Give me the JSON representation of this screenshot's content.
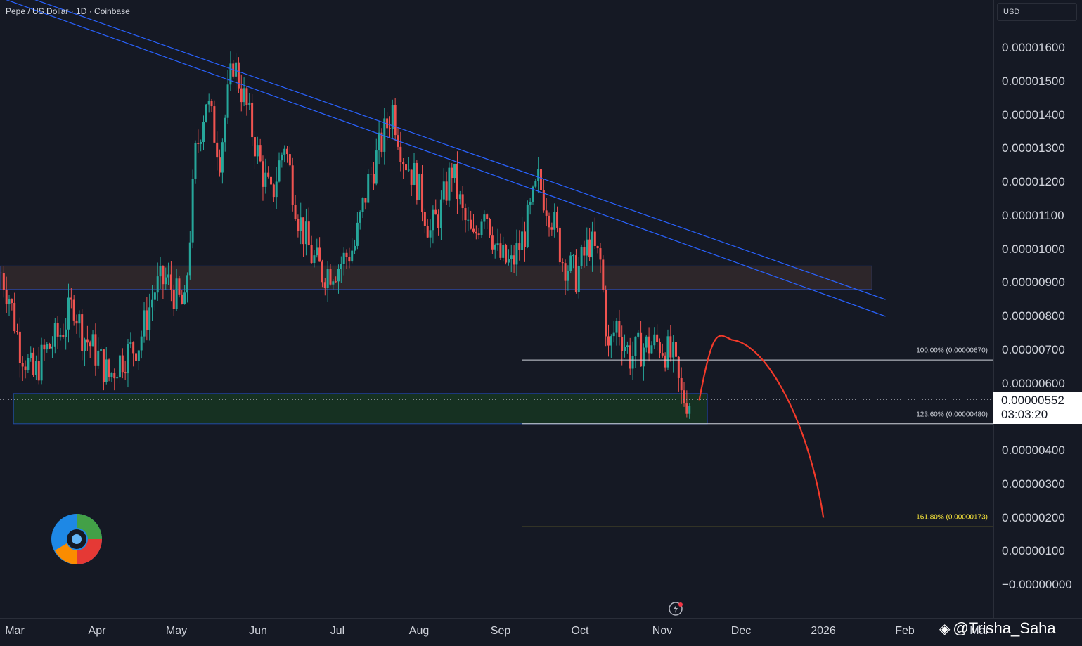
{
  "header": {
    "title": "Pepe / US Dollar · 1D · Coinbase"
  },
  "price_axis": {
    "currency": "USD",
    "labels": [
      {
        "text": "0.00001600",
        "value": 1.6e-05
      },
      {
        "text": "0.00001500",
        "value": 1.5e-05
      },
      {
        "text": "0.00001400",
        "value": 1.4e-05
      },
      {
        "text": "0.00001300",
        "value": 1.3e-05
      },
      {
        "text": "0.00001200",
        "value": 1.2e-05
      },
      {
        "text": "0.00001100",
        "value": 1.1e-05
      },
      {
        "text": "0.00001000",
        "value": 1e-05
      },
      {
        "text": "0.00000900",
        "value": 9e-06
      },
      {
        "text": "0.00000800",
        "value": 8e-06
      },
      {
        "text": "0.00000700",
        "value": 7e-06
      },
      {
        "text": "0.00000600",
        "value": 6e-06
      },
      {
        "text": "0.00000400",
        "value": 4e-06
      },
      {
        "text": "0.00000300",
        "value": 3e-06
      },
      {
        "text": "0.00000200",
        "value": 2e-06
      },
      {
        "text": "0.00000100",
        "value": 1e-06
      },
      {
        "text": "−0.00000000",
        "value": 0
      }
    ],
    "current_price": "0.00000552",
    "countdown": "03:03:20"
  },
  "time_axis": {
    "labels": [
      "Mar",
      "Apr",
      "May",
      "Jun",
      "Jul",
      "Aug",
      "Sep",
      "Oct",
      "Nov",
      "Dec",
      "2026",
      "Feb",
      "Mar"
    ]
  },
  "colors": {
    "background": "#151924",
    "up": "#26a69a",
    "down": "#ef5350",
    "trendline": "#2962ff",
    "projection": "#f23a2a",
    "fib_white": "#d1d4dc",
    "fib_yellow": "#ffeb3b"
  },
  "fib_levels": [
    {
      "label": "100.00% (0.00000670)",
      "value": 6.7e-06,
      "color": "#d1d4dc"
    },
    {
      "label": "123.60% (0.00000480)",
      "value": 4.8e-06,
      "color": "#d1d4dc"
    },
    {
      "label": "161.80% (0.00000173)",
      "value": 1.73e-06,
      "color": "#ffeb3b"
    }
  ],
  "zones": [
    {
      "name": "resistance-zone",
      "from": "2025-02-26",
      "to": "2026-01-15",
      "low": 8.8e-06,
      "high": 9.5e-06,
      "color": "#5d4037"
    },
    {
      "name": "support-zone",
      "from": "2025-03-03",
      "to": "2025-11-15",
      "low": 4.8e-06,
      "high": 5.7e-06,
      "color": "#1b5e20"
    }
  ],
  "trendlines": [
    {
      "from": {
        "date": "2025-02-26",
        "price": 1.78e-05
      },
      "to": {
        "date": "2026-01-20",
        "price": 8.5e-06
      }
    },
    {
      "from": {
        "date": "2025-02-26",
        "price": 1.75e-05
      },
      "to": {
        "date": "2026-01-20",
        "price": 8e-06
      }
    }
  ],
  "projection_path": [
    {
      "date": "2025-11-12",
      "price": 5.5e-06
    },
    {
      "date": "2025-11-24",
      "price": 7.3e-06
    },
    {
      "date": "2025-12-07",
      "price": 6.5e-06
    },
    {
      "date": "2025-12-28",
      "price": 2e-06
    }
  ],
  "watermark": {
    "text": "@Trisha_Saha",
    "icon": "binance-diamond-icon"
  },
  "chart_data": {
    "type": "candlestick",
    "symbol": "Pepe / US Dollar",
    "interval": "1D",
    "exchange": "Coinbase",
    "y_range": [
      -1e-06,
      1.75e-05
    ],
    "x_range": [
      "2025-02-26",
      "2026-03-08"
    ],
    "grid": false,
    "series": [
      {
        "name": "price",
        "values": [
          {
            "date": "2025-02-26",
            "close": 9.3e-06
          },
          {
            "date": "2025-03-01",
            "close": 8.6e-06
          },
          {
            "date": "2025-03-05",
            "close": 7.1e-06
          },
          {
            "date": "2025-03-10",
            "close": 6.2e-06
          },
          {
            "date": "2025-03-14",
            "close": 6.9e-06
          },
          {
            "date": "2025-03-20",
            "close": 7.5e-06
          },
          {
            "date": "2025-03-25",
            "close": 8.4e-06
          },
          {
            "date": "2025-03-28",
            "close": 7.5e-06
          },
          {
            "date": "2025-04-03",
            "close": 6.8e-06
          },
          {
            "date": "2025-04-07",
            "close": 6.2e-06
          },
          {
            "date": "2025-04-11",
            "close": 6.7e-06
          },
          {
            "date": "2025-04-18",
            "close": 7.2e-06
          },
          {
            "date": "2025-04-24",
            "close": 8.8e-06
          },
          {
            "date": "2025-04-28",
            "close": 9.1e-06
          },
          {
            "date": "2025-05-05",
            "close": 8.2e-06
          },
          {
            "date": "2025-05-09",
            "close": 1.28e-05
          },
          {
            "date": "2025-05-13",
            "close": 1.45e-05
          },
          {
            "date": "2025-05-18",
            "close": 1.28e-05
          },
          {
            "date": "2025-05-23",
            "close": 1.56e-05
          },
          {
            "date": "2025-05-28",
            "close": 1.42e-05
          },
          {
            "date": "2025-06-02",
            "close": 1.25e-05
          },
          {
            "date": "2025-06-06",
            "close": 1.15e-05
          },
          {
            "date": "2025-06-11",
            "close": 1.32e-05
          },
          {
            "date": "2025-06-16",
            "close": 1.1e-05
          },
          {
            "date": "2025-06-21",
            "close": 9.8e-06
          },
          {
            "date": "2025-06-25",
            "close": 9.3e-06
          },
          {
            "date": "2025-07-01",
            "close": 9.5e-06
          },
          {
            "date": "2025-07-07",
            "close": 1.01e-05
          },
          {
            "date": "2025-07-12",
            "close": 1.2e-05
          },
          {
            "date": "2025-07-17",
            "close": 1.32e-05
          },
          {
            "date": "2025-07-21",
            "close": 1.42e-05
          },
          {
            "date": "2025-07-25",
            "close": 1.28e-05
          },
          {
            "date": "2025-07-30",
            "close": 1.2e-05
          },
          {
            "date": "2025-08-04",
            "close": 1.05e-05
          },
          {
            "date": "2025-08-08",
            "close": 1.12e-05
          },
          {
            "date": "2025-08-12",
            "close": 1.24e-05
          },
          {
            "date": "2025-08-16",
            "close": 1.1e-05
          },
          {
            "date": "2025-08-20",
            "close": 1.02e-05
          },
          {
            "date": "2025-08-24",
            "close": 1.14e-05
          },
          {
            "date": "2025-08-29",
            "close": 9.8e-06
          },
          {
            "date": "2025-09-03",
            "close": 9.5e-06
          },
          {
            "date": "2025-09-08",
            "close": 1.05e-05
          },
          {
            "date": "2025-09-13",
            "close": 1.2e-05
          },
          {
            "date": "2025-09-18",
            "close": 1.1e-05
          },
          {
            "date": "2025-09-22",
            "close": 9.7e-06
          },
          {
            "date": "2025-09-27",
            "close": 9.2e-06
          },
          {
            "date": "2025-10-02",
            "close": 1.02e-05
          },
          {
            "date": "2025-10-06",
            "close": 9.6e-06
          },
          {
            "date": "2025-10-09",
            "close": 6.9e-06
          },
          {
            "date": "2025-10-12",
            "close": 7.8e-06
          },
          {
            "date": "2025-10-17",
            "close": 6.8e-06
          },
          {
            "date": "2025-10-22",
            "close": 7.1e-06
          },
          {
            "date": "2025-10-28",
            "close": 7.2e-06
          },
          {
            "date": "2025-11-02",
            "close": 6.7e-06
          },
          {
            "date": "2025-11-05",
            "close": 5.6e-06
          },
          {
            "date": "2025-11-08",
            "close": 5.5e-06
          }
        ]
      }
    ]
  }
}
